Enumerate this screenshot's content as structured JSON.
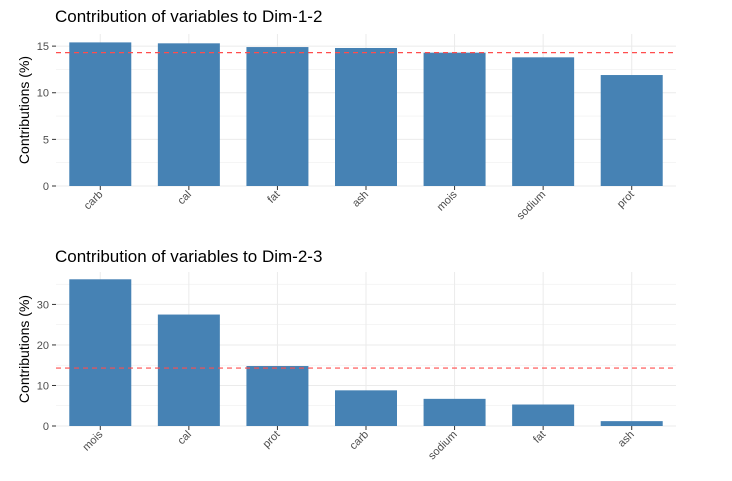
{
  "chart_data": [
    {
      "type": "bar",
      "title": "Contribution of variables to Dim-1-2",
      "ylabel": "Contributions (%)",
      "xlabel": "",
      "categories": [
        "carb",
        "cal",
        "fat",
        "ash",
        "mois",
        "sodium",
        "prot"
      ],
      "values": [
        15.4,
        15.3,
        14.9,
        14.8,
        14.3,
        13.8,
        11.9
      ],
      "reference_line": 14.3,
      "ylim": [
        0,
        16.3
      ],
      "yticks": [
        0,
        5,
        10,
        15
      ],
      "grid": true,
      "legend": "none"
    },
    {
      "type": "bar",
      "title": "Contribution of variables to Dim-2-3",
      "ylabel": "Contributions (%)",
      "xlabel": "",
      "categories": [
        "mois",
        "cal",
        "prot",
        "carb",
        "sodium",
        "fat",
        "ash"
      ],
      "values": [
        36.2,
        27.5,
        14.8,
        8.8,
        6.7,
        5.3,
        1.2
      ],
      "reference_line": 14.3,
      "ylim": [
        0,
        38
      ],
      "yticks": [
        0,
        10,
        20,
        30
      ],
      "grid": true,
      "legend": "none"
    }
  ],
  "colors": {
    "bar": "#4682b4",
    "reference_line": "#ff4d4d",
    "grid": "#ebebeb",
    "tick_text": "#4d4d4d"
  }
}
